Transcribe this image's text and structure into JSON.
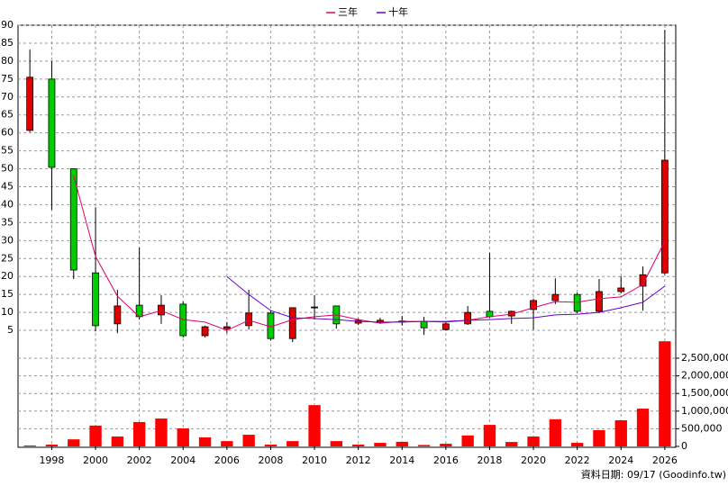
{
  "chart_data": {
    "type": "candlestick",
    "x": [
      1997,
      1998,
      1999,
      2000,
      2001,
      2002,
      2003,
      2004,
      2005,
      2006,
      2007,
      2008,
      2009,
      2010,
      2011,
      2012,
      2013,
      2014,
      2015,
      2016,
      2017,
      2018,
      2019,
      2020,
      2021,
      2022,
      2023,
      2024,
      2025,
      2026
    ],
    "xlim": [
      1996.5,
      2026.5
    ],
    "xticks": [
      1998,
      2000,
      2002,
      2004,
      2006,
      2008,
      2010,
      2012,
      2014,
      2016,
      2018,
      2020,
      2022,
      2024,
      2026
    ],
    "open": [
      60.7,
      75,
      50,
      21,
      6.8,
      12,
      9.3,
      12.3,
      3.5,
      5.5,
      6.3,
      9.8,
      2.7,
      11.3,
      11.8,
      7,
      7.3,
      7.3,
      7.5,
      5.2,
      6.8,
      10.3,
      9,
      10.8,
      13.3,
      15,
      10.3,
      15.8,
      17.3,
      21
    ],
    "high": [
      83.2,
      80,
      50,
      39.3,
      16.3,
      28,
      14.8,
      13,
      6.3,
      7.3,
      16.3,
      10.5,
      11.3,
      14.8,
      11.8,
      8.3,
      8.5,
      9,
      8.8,
      7.3,
      11.8,
      26.6,
      10.5,
      13.8,
      19.5,
      15.5,
      19.3,
      20,
      22.8,
      88.7
    ],
    "low": [
      60.2,
      38.6,
      19.3,
      4.7,
      4.2,
      8,
      6.8,
      3,
      3,
      4.2,
      5.2,
      2.2,
      1.7,
      8,
      5.5,
      6.5,
      6.8,
      6.3,
      3.7,
      5,
      6.5,
      8.5,
      6.8,
      5.2,
      12.3,
      9.8,
      9.8,
      15.3,
      10.5,
      20.5
    ],
    "close": [
      75.5,
      50.4,
      21.8,
      6.3,
      11.8,
      8.8,
      12,
      3.5,
      6,
      6,
      9.8,
      2.7,
      11.3,
      11.5,
      6.8,
      7.8,
      7.8,
      7.6,
      5.7,
      6.8,
      10,
      8.8,
      10.3,
      13.3,
      15,
      10.3,
      15.8,
      16.8,
      20.5,
      52.4
    ],
    "up_color": "#e00000",
    "down_color": "#00cc00",
    "series": [
      {
        "name": "三年",
        "color": "#e0006a",
        "values": [
          null,
          null,
          48,
          25.6,
          14.5,
          8.8,
          10.5,
          8,
          7.3,
          5,
          7.8,
          6,
          8,
          8.8,
          9.3,
          8,
          7,
          7.5,
          7.5,
          7.3,
          7.8,
          8.8,
          9.5,
          11.3,
          13,
          12.8,
          13.8,
          14.3,
          17.8,
          29.8
        ]
      },
      {
        "name": "十年",
        "color": "#6a00c8",
        "values": [
          null,
          null,
          null,
          null,
          null,
          null,
          null,
          null,
          null,
          20,
          15,
          10.5,
          8.5,
          8.3,
          8,
          7.5,
          7.3,
          7.3,
          7.5,
          7.5,
          7.8,
          8,
          8.3,
          8.5,
          9.3,
          9.5,
          10,
          11.3,
          12.8,
          17.3
        ]
      }
    ],
    "ylim": [
      1.5,
      90
    ],
    "yticks": [
      5,
      10,
      15,
      20,
      25,
      30,
      35,
      40,
      45,
      50,
      55,
      60,
      65,
      70,
      75,
      80,
      85,
      90
    ],
    "grid": true,
    "legend": "top",
    "volume": {
      "type": "bar",
      "color": "#ff0000",
      "values": [
        25000,
        50000,
        200000,
        590000,
        280000,
        690000,
        790000,
        510000,
        255000,
        150000,
        330000,
        50000,
        150000,
        1170000,
        150000,
        50000,
        100000,
        130000,
        40000,
        75000,
        310000,
        610000,
        125000,
        280000,
        770000,
        100000,
        460000,
        740000,
        1070000,
        2980000
      ],
      "ylim": [
        0,
        3000000
      ],
      "yticks": [
        0,
        {
          "value": 500000,
          "label": "500,000"
        },
        {
          "value": 1000000,
          "label": "1,000,000"
        },
        {
          "value": 1500000,
          "label": "1,500,000"
        },
        {
          "value": 2000000,
          "label": "2,000,000"
        },
        {
          "value": 2500000,
          "label": "2,500,000"
        }
      ]
    },
    "source": "資料日期: 09/17 (Goodinfo.tw)"
  }
}
